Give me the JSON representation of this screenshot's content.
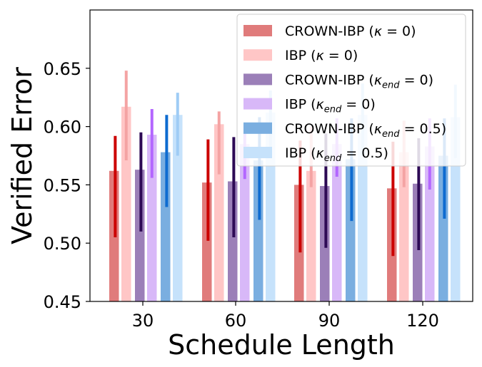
{
  "chart_data": {
    "type": "bar",
    "title": "",
    "xlabel": "Schedule Length",
    "ylabel": "Verified Error",
    "categories": [
      "30",
      "60",
      "90",
      "120"
    ],
    "ylim": [
      0.45,
      0.7
    ],
    "yticks": [
      "0.45",
      "0.50",
      "0.55",
      "0.60",
      "0.65"
    ],
    "legend_position": "top-right",
    "series": [
      {
        "name": "CROWN-IBP (κ=0)",
        "legend": {
          "prefix": "CROWN-IBP (",
          "sym": "κ",
          "sub": "",
          "suffix": " = 0)"
        },
        "bar_color": "#e07b7b",
        "err_color": "#cc0000",
        "values": [
          0.562,
          0.552,
          0.55,
          0.547
        ],
        "err_low": [
          0.505,
          0.502,
          0.492,
          0.489
        ],
        "err_high": [
          0.592,
          0.589,
          0.588,
          0.587
        ]
      },
      {
        "name": "IBP (κ=0)",
        "legend": {
          "prefix": "IBP (",
          "sym": "κ",
          "sub": "",
          "suffix": " = 0)"
        },
        "bar_color": "#ffc6c6",
        "err_color": "#f4a3a3",
        "values": [
          0.617,
          0.602,
          0.562,
          0.578
        ],
        "err_low": [
          0.571,
          0.559,
          0.548,
          0.548
        ],
        "err_high": [
          0.648,
          0.613,
          0.6,
          0.605
        ]
      },
      {
        "name": "CROWN-IBP (κ_end=0)",
        "legend": {
          "prefix": "CROWN-IBP (",
          "sym": "κ",
          "sub": "end",
          "suffix": " = 0)"
        },
        "bar_color": "#9b7fb8",
        "err_color": "#2d0a55",
        "values": [
          0.563,
          0.553,
          0.549,
          0.551
        ],
        "err_low": [
          0.51,
          0.505,
          0.496,
          0.494
        ],
        "err_high": [
          0.595,
          0.591,
          0.594,
          0.59
        ]
      },
      {
        "name": "IBP (κ_end=0)",
        "legend": {
          "prefix": "IBP (",
          "sym": "κ",
          "sub": "end",
          "suffix": " = 0)"
        },
        "bar_color": "#d8b8f8",
        "err_color": "#b366ff",
        "values": [
          0.593,
          0.585,
          0.585,
          0.583
        ],
        "err_low": [
          0.556,
          0.555,
          0.557,
          0.546
        ],
        "err_high": [
          0.615,
          0.602,
          0.607,
          0.607
        ]
      },
      {
        "name": "CROWN-IBP (κ_end=0.5)",
        "legend": {
          "prefix": "CROWN-IBP (",
          "sym": "κ",
          "sub": "end",
          "suffix": " = 0.5)"
        },
        "bar_color": "#7aaee0",
        "err_color": "#0e6bd0",
        "values": [
          0.578,
          0.571,
          0.572,
          0.575
        ],
        "err_low": [
          0.531,
          0.52,
          0.519,
          0.521
        ],
        "err_high": [
          0.61,
          0.608,
          0.607,
          0.607
        ]
      },
      {
        "name": "IBP (κ_end=0.5)",
        "legend": {
          "prefix": "IBP (",
          "sym": "κ",
          "sub": "end",
          "suffix": " = 0.5)"
        },
        "bar_color": "#c6e2fb",
        "err_color": "#9fccf5",
        "values": [
          0.61,
          0.612,
          0.61,
          0.608
        ],
        "err_low": [
          0.575,
          0.577,
          0.575,
          0.573
        ],
        "err_high": [
          0.629,
          0.631,
          0.637,
          0.636
        ]
      }
    ]
  }
}
